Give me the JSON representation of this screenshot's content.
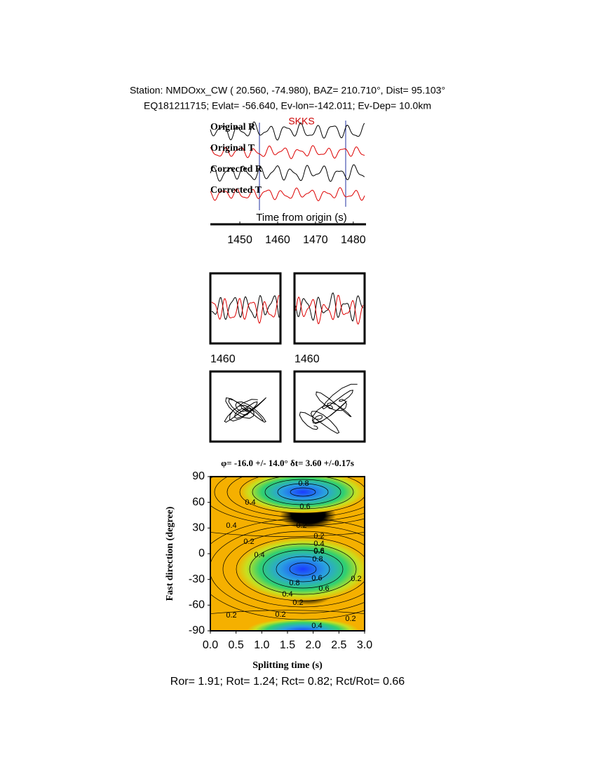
{
  "header": {
    "line1": "Station: NMDOxx_CW (  20.560,  -74.980), BAZ=  210.710°, Dist=   95.103°",
    "line2": "EQ181211715; Evlat= -56.640, Ev-lon=-142.011; Ev-Dep= 10.0km"
  },
  "traces": {
    "labels": [
      "Original R",
      "Original T",
      "Corrected R",
      "Corrected T"
    ],
    "phase": "SKKS",
    "xlabel": "Time from origin (s)",
    "xlim": [
      1442.2,
      1483
    ],
    "xticks": [
      1450,
      1460,
      1470,
      1480
    ]
  },
  "panels": {
    "tick_labels": [
      "1460",
      "1460"
    ]
  },
  "grid_search": {
    "title": "φ= -16.0 +/- 14.0° δt= 3.60 +/-0.17s",
    "xlabel": "Splitting time (s)",
    "ylabel": "Fast direction (degree)",
    "xlim": [
      0,
      3
    ],
    "ylim": [
      -90,
      90
    ],
    "xticks": [
      {
        "value": 0,
        "label": "0.0"
      },
      {
        "value": 0.5,
        "label": "0.5"
      },
      {
        "value": 1,
        "label": "1.0"
      },
      {
        "value": 1.5,
        "label": "1.5"
      },
      {
        "value": 2,
        "label": "2.0"
      },
      {
        "value": 2.5,
        "label": "2.5"
      },
      {
        "value": 3,
        "label": "3.0"
      }
    ],
    "yticks": [
      90,
      60,
      30,
      0,
      -30,
      -60,
      -90
    ],
    "contour_labels": [
      "0.8",
      "0.6",
      "0.4",
      "0.6",
      "0.4",
      "0.2",
      "0.2",
      "0.2",
      "0.4",
      "0.6",
      "0.8",
      "0.6",
      "0.4",
      "0.2",
      "0.6",
      "0.8",
      "0.6",
      "0.4",
      "0.2",
      "0.2",
      "0.4",
      "0.2",
      "0.2"
    ]
  },
  "footer": "Ror= 1.91; Rot= 1.24; Rct= 0.82; Rct/Rot= 0.66"
}
